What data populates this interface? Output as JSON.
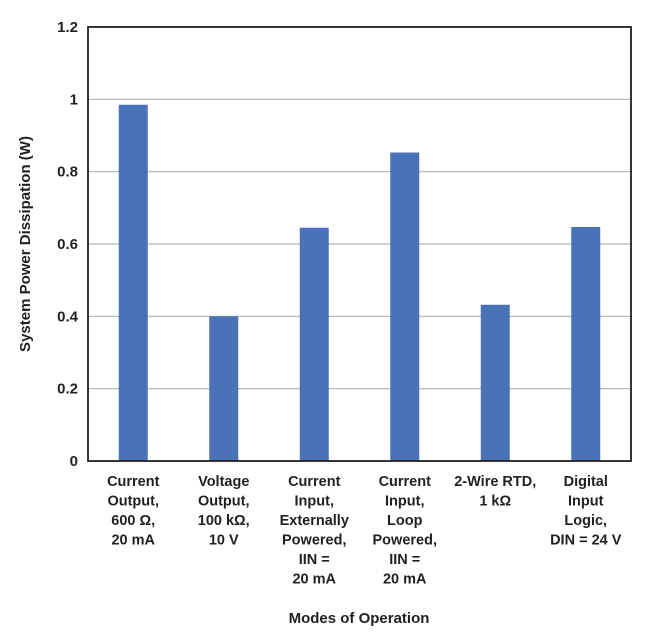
{
  "chart_data": {
    "type": "bar",
    "title": "",
    "xlabel": "Modes of Operation",
    "ylabel": "System Power Dissipation (W)",
    "ylim": [
      0,
      1.2
    ],
    "yticks": [
      "0",
      "0.2",
      "0.4",
      "0.6",
      "0.8",
      "1",
      "1.2"
    ],
    "grid": true,
    "bar_color": "#4a72b8",
    "categories": [
      [
        "Current",
        "Output,",
        "600 Ω,",
        "20 mA"
      ],
      [
        "Voltage",
        "Output,",
        "100 kΩ,",
        "10 V"
      ],
      [
        "Current",
        "Input,",
        "Externally",
        "Powered,",
        "IIN =",
        "20 mA"
      ],
      [
        "Current",
        "Input,",
        "Loop",
        "Powered,",
        "IIN =",
        "20 mA"
      ],
      [
        "2-Wire RTD,",
        "1 kΩ"
      ],
      [
        "Digital",
        "Input",
        "Logic,",
        "DIN = 24 V"
      ]
    ],
    "values": [
      0.985,
      0.4,
      0.645,
      0.853,
      0.432,
      0.647
    ]
  }
}
